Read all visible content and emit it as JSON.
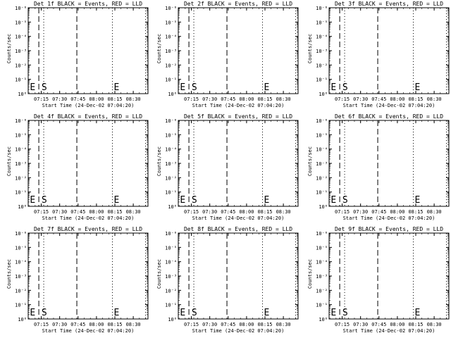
{
  "chart_data": [
    {
      "type": "line",
      "title": "Det 1f BLACK = Events, RED = LLD",
      "ylabel": "Counts/sec",
      "xlabel": "Start Time (24-Dec-02 07:04:20)",
      "xticks": [
        "07:15",
        "07:30",
        "07:45",
        "08:00",
        "08:15",
        "08:30"
      ],
      "yticks": [
        "10⁰",
        "10⁻¹",
        "10⁻²",
        "10⁻³",
        "10⁻⁴",
        "10⁻⁵",
        "10⁻⁶"
      ],
      "yscale": "log",
      "ylim": [
        1,
        1e-06
      ],
      "vlines": [
        {
          "x": "07:13",
          "style": "dashed"
        },
        {
          "x": "07:44",
          "style": "dashed"
        },
        {
          "x": "07:17",
          "style": "dotted"
        },
        {
          "x": "08:13",
          "style": "dotted"
        },
        {
          "x": "08:40",
          "style": "dotted"
        }
      ],
      "markers": [
        {
          "text": "E",
          "x": "07:04"
        },
        {
          "text": "S",
          "x": "07:14"
        },
        {
          "text": "E",
          "x": "08:13"
        }
      ],
      "series": []
    },
    {
      "type": "line",
      "title": "Det 2f BLACK = Events, RED = LLD",
      "ylabel": "Counts/sec",
      "xlabel": "Start Time (24-Dec-02 07:04:20)",
      "xticks": [
        "07:15",
        "07:30",
        "07:45",
        "08:00",
        "08:15",
        "08:30"
      ],
      "yticks": [
        "10⁰",
        "10⁻¹",
        "10⁻²",
        "10⁻³",
        "10⁻⁴",
        "10⁻⁵",
        "10⁻⁶"
      ],
      "yscale": "log",
      "ylim": [
        1,
        1e-06
      ],
      "vlines": [
        {
          "x": "07:13",
          "style": "dashed"
        },
        {
          "x": "07:44",
          "style": "dashed"
        },
        {
          "x": "07:17",
          "style": "dotted"
        },
        {
          "x": "08:13",
          "style": "dotted"
        },
        {
          "x": "08:40",
          "style": "dotted"
        }
      ],
      "markers": [
        {
          "text": "E",
          "x": "07:04"
        },
        {
          "text": "S",
          "x": "07:14"
        },
        {
          "text": "E",
          "x": "08:13"
        }
      ],
      "series": []
    },
    {
      "type": "line",
      "title": "Det 3f BLACK = Events, RED = LLD",
      "ylabel": "Counts/sec",
      "xlabel": "Start Time (24-Dec-02 07:04:20)",
      "xticks": [
        "07:15",
        "07:30",
        "07:45",
        "08:00",
        "08:15",
        "08:30"
      ],
      "yticks": [
        "10⁰",
        "10⁻¹",
        "10⁻²",
        "10⁻³",
        "10⁻⁴",
        "10⁻⁵",
        "10⁻⁶"
      ],
      "yscale": "log",
      "ylim": [
        1,
        1e-06
      ],
      "vlines": [
        {
          "x": "07:13",
          "style": "dashed"
        },
        {
          "x": "07:44",
          "style": "dashed"
        },
        {
          "x": "07:17",
          "style": "dotted"
        },
        {
          "x": "08:13",
          "style": "dotted"
        },
        {
          "x": "08:40",
          "style": "dotted"
        }
      ],
      "markers": [
        {
          "text": "E",
          "x": "07:04"
        },
        {
          "text": "S",
          "x": "07:14"
        },
        {
          "text": "E",
          "x": "08:13"
        }
      ],
      "series": []
    },
    {
      "type": "line",
      "title": "Det 4f BLACK = Events, RED = LLD",
      "ylabel": "Counts/sec",
      "xlabel": "Start Time (24-Dec-02 07:04:20)",
      "xticks": [
        "07:15",
        "07:30",
        "07:45",
        "08:00",
        "08:15",
        "08:30"
      ],
      "yticks": [
        "10⁰",
        "10⁻¹",
        "10⁻²",
        "10⁻³",
        "10⁻⁴",
        "10⁻⁵",
        "10⁻⁶"
      ],
      "yscale": "log",
      "ylim": [
        1,
        1e-06
      ],
      "vlines": [
        {
          "x": "07:13",
          "style": "dashed"
        },
        {
          "x": "07:44",
          "style": "dashed"
        },
        {
          "x": "07:17",
          "style": "dotted"
        },
        {
          "x": "08:13",
          "style": "dotted"
        },
        {
          "x": "08:40",
          "style": "dotted"
        }
      ],
      "markers": [
        {
          "text": "E",
          "x": "07:04"
        },
        {
          "text": "S",
          "x": "07:14"
        },
        {
          "text": "E",
          "x": "08:13"
        }
      ],
      "series": []
    },
    {
      "type": "line",
      "title": "Det 5f BLACK = Events, RED = LLD",
      "ylabel": "Counts/sec",
      "xlabel": "Start Time (24-Dec-02 07:04:20)",
      "xticks": [
        "07:15",
        "07:30",
        "07:45",
        "08:00",
        "08:15",
        "08:30"
      ],
      "yticks": [
        "10⁰",
        "10⁻¹",
        "10⁻²",
        "10⁻³",
        "10⁻⁴",
        "10⁻⁵",
        "10⁻⁶"
      ],
      "yscale": "log",
      "ylim": [
        1,
        1e-06
      ],
      "vlines": [
        {
          "x": "07:13",
          "style": "dashed"
        },
        {
          "x": "07:44",
          "style": "dashed"
        },
        {
          "x": "07:17",
          "style": "dotted"
        },
        {
          "x": "08:13",
          "style": "dotted"
        },
        {
          "x": "08:40",
          "style": "dotted"
        }
      ],
      "markers": [
        {
          "text": "E",
          "x": "07:04"
        },
        {
          "text": "S",
          "x": "07:14"
        },
        {
          "text": "E",
          "x": "08:13"
        }
      ],
      "series": []
    },
    {
      "type": "line",
      "title": "Det 6f BLACK = Events, RED = LLD",
      "ylabel": "Counts/sec",
      "xlabel": "Start Time (24-Dec-02 07:04:20)",
      "xticks": [
        "07:15",
        "07:30",
        "07:45",
        "08:00",
        "08:15",
        "08:30"
      ],
      "yticks": [
        "10⁰",
        "10⁻¹",
        "10⁻²",
        "10⁻³",
        "10⁻⁴",
        "10⁻⁵",
        "10⁻⁶"
      ],
      "yscale": "log",
      "ylim": [
        1,
        1e-06
      ],
      "vlines": [
        {
          "x": "07:13",
          "style": "dashed"
        },
        {
          "x": "07:44",
          "style": "dashed"
        },
        {
          "x": "07:17",
          "style": "dotted"
        },
        {
          "x": "08:13",
          "style": "dotted"
        },
        {
          "x": "08:40",
          "style": "dotted"
        }
      ],
      "markers": [
        {
          "text": "E",
          "x": "07:04"
        },
        {
          "text": "S",
          "x": "07:14"
        },
        {
          "text": "E",
          "x": "08:13"
        }
      ],
      "series": []
    },
    {
      "type": "line",
      "title": "Det 7f BLACK = Events, RED = LLD",
      "ylabel": "Counts/sec",
      "xlabel": "Start Time (24-Dec-02 07:04:20)",
      "xticks": [
        "07:15",
        "07:30",
        "07:45",
        "08:00",
        "08:15",
        "08:30"
      ],
      "yticks": [
        "10⁰",
        "10⁻¹",
        "10⁻²",
        "10⁻³",
        "10⁻⁴",
        "10⁻⁵",
        "10⁻⁶"
      ],
      "yscale": "log",
      "ylim": [
        1,
        1e-06
      ],
      "vlines": [
        {
          "x": "07:13",
          "style": "dashed"
        },
        {
          "x": "07:44",
          "style": "dashed"
        },
        {
          "x": "07:17",
          "style": "dotted"
        },
        {
          "x": "08:13",
          "style": "dotted"
        },
        {
          "x": "08:40",
          "style": "dotted"
        }
      ],
      "markers": [
        {
          "text": "E",
          "x": "07:04"
        },
        {
          "text": "S",
          "x": "07:14"
        },
        {
          "text": "E",
          "x": "08:13"
        }
      ],
      "series": []
    },
    {
      "type": "line",
      "title": "Det 8f BLACK = Events, RED = LLD",
      "ylabel": "Counts/sec",
      "xlabel": "Start Time (24-Dec-02 07:04:20)",
      "xticks": [
        "07:15",
        "07:30",
        "07:45",
        "08:00",
        "08:15",
        "08:30"
      ],
      "yticks": [
        "10⁰",
        "10⁻¹",
        "10⁻²",
        "10⁻³",
        "10⁻⁴",
        "10⁻⁵",
        "10⁻⁶"
      ],
      "yscale": "log",
      "ylim": [
        1,
        1e-06
      ],
      "vlines": [
        {
          "x": "07:13",
          "style": "dashed"
        },
        {
          "x": "07:44",
          "style": "dashed"
        },
        {
          "x": "07:17",
          "style": "dotted"
        },
        {
          "x": "08:13",
          "style": "dotted"
        },
        {
          "x": "08:40",
          "style": "dotted"
        }
      ],
      "markers": [
        {
          "text": "E",
          "x": "07:04"
        },
        {
          "text": "S",
          "x": "07:14"
        },
        {
          "text": "E",
          "x": "08:13"
        }
      ],
      "series": []
    },
    {
      "type": "line",
      "title": "Det 9f BLACK = Events, RED = LLD",
      "ylabel": "Counts/sec",
      "xlabel": "Start Time (24-Dec-02 07:04:20)",
      "xticks": [
        "07:15",
        "07:30",
        "07:45",
        "08:00",
        "08:15",
        "08:30"
      ],
      "yticks": [
        "10⁰",
        "10⁻¹",
        "10⁻²",
        "10⁻³",
        "10⁻⁴",
        "10⁻⁵",
        "10⁻⁶"
      ],
      "yscale": "log",
      "ylim": [
        1,
        1e-06
      ],
      "vlines": [
        {
          "x": "07:13",
          "style": "dashed"
        },
        {
          "x": "07:44",
          "style": "dashed"
        },
        {
          "x": "07:17",
          "style": "dotted"
        },
        {
          "x": "08:13",
          "style": "dotted"
        },
        {
          "x": "08:40",
          "style": "dotted"
        }
      ],
      "markers": [
        {
          "text": "E",
          "x": "07:04"
        },
        {
          "text": "S",
          "x": "07:14"
        },
        {
          "text": "E",
          "x": "08:13"
        }
      ],
      "series": []
    }
  ]
}
